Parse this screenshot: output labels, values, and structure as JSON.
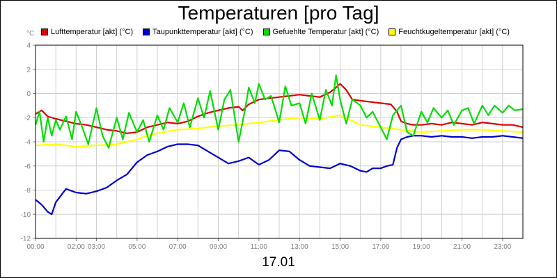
{
  "title": "Temperaturen [pro Tag]",
  "footer_date": "17.01",
  "unit_label": "°C",
  "chart_data": {
    "type": "line",
    "title": "Temperaturen [pro Tag]",
    "ylabel": "°C",
    "ylim": [
      -12,
      4
    ],
    "yticks": [
      4,
      2,
      0,
      -2,
      -4,
      -6,
      -8,
      -10,
      -12
    ],
    "xlim": [
      0,
      24
    ],
    "xticks": [
      {
        "label": "00:00",
        "value": 0
      },
      {
        "label": "02:00",
        "value": 2
      },
      {
        "label": "03:00",
        "value": 3
      },
      {
        "label": "05:00",
        "value": 5
      },
      {
        "label": "07:00",
        "value": 7
      },
      {
        "label": "09:00",
        "value": 9
      },
      {
        "label": "11:00",
        "value": 11
      },
      {
        "label": "13:00",
        "value": 13
      },
      {
        "label": "15:00",
        "value": 15
      },
      {
        "label": "17:00",
        "value": 17
      },
      {
        "label": "19:00",
        "value": 19
      },
      {
        "label": "21:00",
        "value": 21
      },
      {
        "label": "23:00",
        "value": 23
      }
    ],
    "grid": true,
    "series": [
      {
        "name": "Lufttemperatur [akt] (°C)",
        "color": "#dd0000",
        "x": [
          0,
          0.3,
          0.6,
          1,
          1.5,
          2,
          2.5,
          3,
          3.5,
          4,
          4.5,
          5,
          5.5,
          6,
          6.5,
          7,
          7.5,
          8,
          8.5,
          9,
          9.5,
          10,
          10.2,
          10.5,
          11,
          11.5,
          12,
          12.5,
          13,
          13.5,
          14,
          14.5,
          14.8,
          15,
          15.3,
          15.6,
          16,
          16.5,
          17,
          17.5,
          17.8,
          18,
          18.3,
          18.6,
          19,
          19.5,
          20,
          20.5,
          21,
          21.5,
          22,
          22.5,
          23,
          23.5,
          24
        ],
        "y": [
          -1.7,
          -1.4,
          -1.9,
          -2.1,
          -2.3,
          -2.5,
          -2.6,
          -2.8,
          -3.0,
          -3.1,
          -3.3,
          -3.2,
          -2.8,
          -2.6,
          -2.4,
          -2.5,
          -2.3,
          -1.9,
          -1.6,
          -1.4,
          -1.2,
          -1.1,
          -1.4,
          -0.9,
          -0.5,
          -0.4,
          -0.3,
          -0.2,
          -0.1,
          -0.2,
          -0.3,
          0.1,
          0.5,
          0.8,
          0.3,
          -0.5,
          -0.6,
          -0.7,
          -0.8,
          -0.9,
          -1.5,
          -2.3,
          -2.5,
          -2.6,
          -2.6,
          -2.5,
          -2.6,
          -2.4,
          -2.5,
          -2.6,
          -2.4,
          -2.5,
          -2.6,
          -2.6,
          -2.8
        ]
      },
      {
        "name": "Taupunkttemperatur [akt] (°C)",
        "color": "#0000cc",
        "x": [
          0,
          0.3,
          0.6,
          0.8,
          1,
          1.5,
          2,
          2.5,
          3,
          3.5,
          4,
          4.5,
          5,
          5.5,
          6,
          6.5,
          7,
          7.5,
          8,
          8.5,
          9,
          9.5,
          10,
          10.5,
          11,
          11.5,
          12,
          12.5,
          13,
          13.5,
          14,
          14.5,
          15,
          15.5,
          16,
          16.3,
          16.6,
          17,
          17.3,
          17.6,
          17.8,
          18,
          18.3,
          18.6,
          19,
          19.5,
          20,
          20.5,
          21,
          21.5,
          22,
          22.5,
          23,
          23.5,
          24
        ],
        "y": [
          -8.8,
          -9.2,
          -9.8,
          -10.0,
          -9.0,
          -7.9,
          -8.2,
          -8.3,
          -8.1,
          -7.8,
          -7.2,
          -6.7,
          -5.7,
          -5.1,
          -4.8,
          -4.4,
          -4.2,
          -4.2,
          -4.3,
          -4.8,
          -5.3,
          -5.8,
          -5.6,
          -5.3,
          -5.9,
          -5.5,
          -4.7,
          -4.8,
          -5.5,
          -6.0,
          -6.1,
          -6.2,
          -5.8,
          -6.0,
          -6.4,
          -6.5,
          -6.2,
          -6.2,
          -6.0,
          -5.9,
          -4.5,
          -3.8,
          -3.6,
          -3.5,
          -3.5,
          -3.6,
          -3.5,
          -3.6,
          -3.6,
          -3.7,
          -3.6,
          -3.6,
          -3.5,
          -3.6,
          -3.7
        ]
      },
      {
        "name": "Gefuehlte Temperatur [akt] (°C)",
        "color": "#00dd00",
        "x": [
          0,
          0.2,
          0.4,
          0.6,
          0.8,
          1,
          1.2,
          1.5,
          1.8,
          2,
          2.3,
          2.6,
          3,
          3.3,
          3.6,
          4,
          4.3,
          4.6,
          5,
          5.3,
          5.6,
          6,
          6.3,
          6.6,
          7,
          7.3,
          7.6,
          8,
          8.3,
          8.6,
          9,
          9.3,
          9.6,
          10,
          10.3,
          10.5,
          10.8,
          11,
          11.3,
          11.6,
          12,
          12.3,
          12.6,
          13,
          13.3,
          13.6,
          14,
          14.3,
          14.6,
          14.8,
          15,
          15.3,
          15.6,
          16,
          16.3,
          16.6,
          17,
          17.3,
          17.6,
          18,
          18.3,
          18.6,
          19,
          19.3,
          19.6,
          20,
          20.3,
          20.6,
          21,
          21.3,
          21.6,
          22,
          22.3,
          22.6,
          23,
          23.3,
          23.6,
          24
        ],
        "y": [
          -2.6,
          -1.5,
          -4.0,
          -2.0,
          -3.5,
          -2.2,
          -3.0,
          -1.9,
          -3.8,
          -1.5,
          -2.8,
          -4.2,
          -1.2,
          -3.5,
          -4.5,
          -2.0,
          -3.8,
          -1.6,
          -3.2,
          -2.2,
          -4.0,
          -1.8,
          -3.0,
          -1.2,
          -2.4,
          -0.8,
          -2.8,
          -0.4,
          -2.0,
          0.2,
          -3.0,
          -0.5,
          0.3,
          -4.0,
          -1.5,
          0.5,
          -0.8,
          0.8,
          -0.5,
          -0.2,
          -2.4,
          0.6,
          -1.0,
          -0.8,
          -2.5,
          0.0,
          -2.2,
          0.3,
          -1.0,
          1.5,
          -0.5,
          -2.5,
          -0.5,
          -1.0,
          -2.0,
          -1.5,
          -2.8,
          -3.8,
          -1.8,
          -1.0,
          -3.2,
          -3.5,
          -1.5,
          -2.4,
          -1.2,
          -2.0,
          -1.4,
          -2.6,
          -1.4,
          -1.2,
          -2.5,
          -1.0,
          -1.8,
          -1.0,
          -1.6,
          -1.0,
          -1.4,
          -1.3
        ]
      },
      {
        "name": "Feuchtkugeltemperatur [akt] (°C)",
        "color": "#ffff00",
        "x": [
          0,
          1,
          2,
          3,
          4,
          5,
          5.5,
          6,
          7,
          8,
          9,
          10,
          11,
          12,
          13,
          14,
          15,
          15.5,
          16,
          17,
          18,
          19,
          20,
          21,
          22,
          23,
          24
        ],
        "y": [
          -4.3,
          -4.2,
          -4.4,
          -4.3,
          -4.2,
          -3.8,
          -3.5,
          -3.3,
          -3.0,
          -2.9,
          -2.7,
          -2.6,
          -2.4,
          -2.2,
          -2.0,
          -2.1,
          -1.8,
          -2.2,
          -2.6,
          -2.8,
          -3.0,
          -3.2,
          -3.1,
          -3.0,
          -3.0,
          -3.1,
          -3.2
        ]
      }
    ]
  }
}
